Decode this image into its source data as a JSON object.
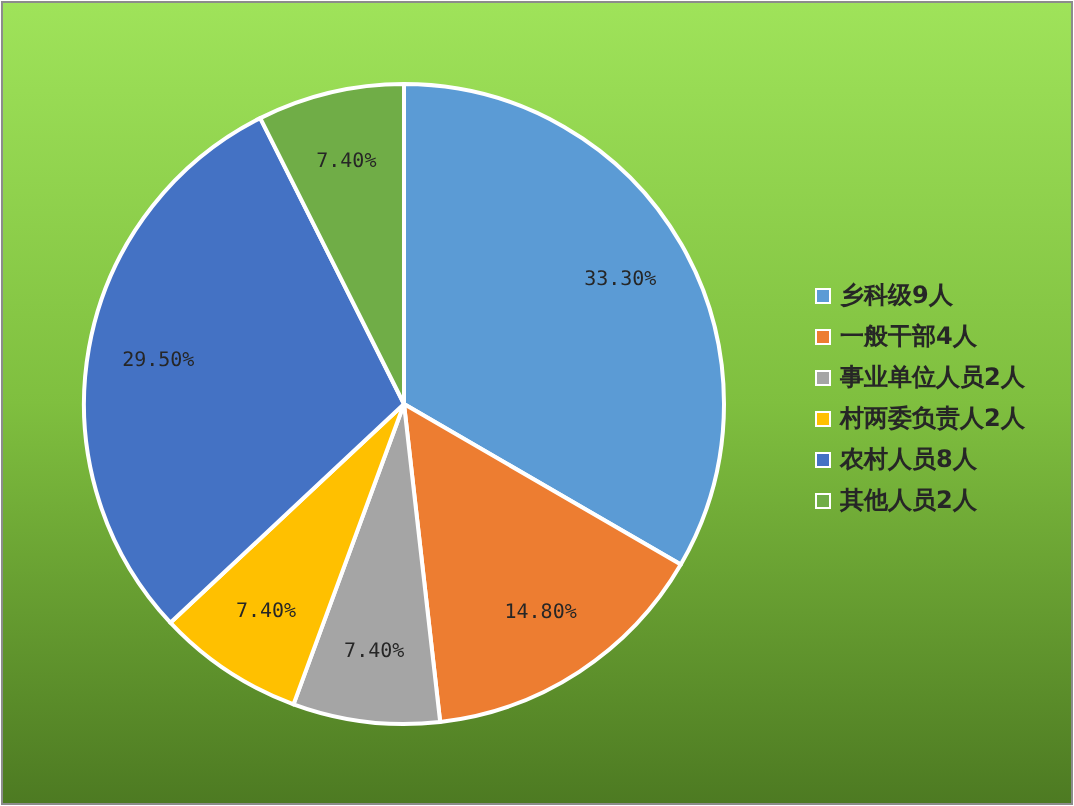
{
  "chart_data": {
    "type": "pie",
    "categories": [
      "乡科级9人",
      "一般干部4人",
      "事业单位人员2人",
      "村两委负责人2人",
      "农村人员8人",
      "其他人员2人"
    ],
    "values": [
      33.3,
      14.8,
      7.4,
      7.4,
      29.5,
      7.4
    ],
    "value_labels": [
      "33.30%",
      "14.80%",
      "7.40%",
      "7.40%",
      "29.50%",
      "7.40%"
    ],
    "colors": [
      "#5b9bd5",
      "#ed7d31",
      "#a5a5a5",
      "#ffc000",
      "#4472c4",
      "#70ad47"
    ],
    "legend": "right"
  }
}
